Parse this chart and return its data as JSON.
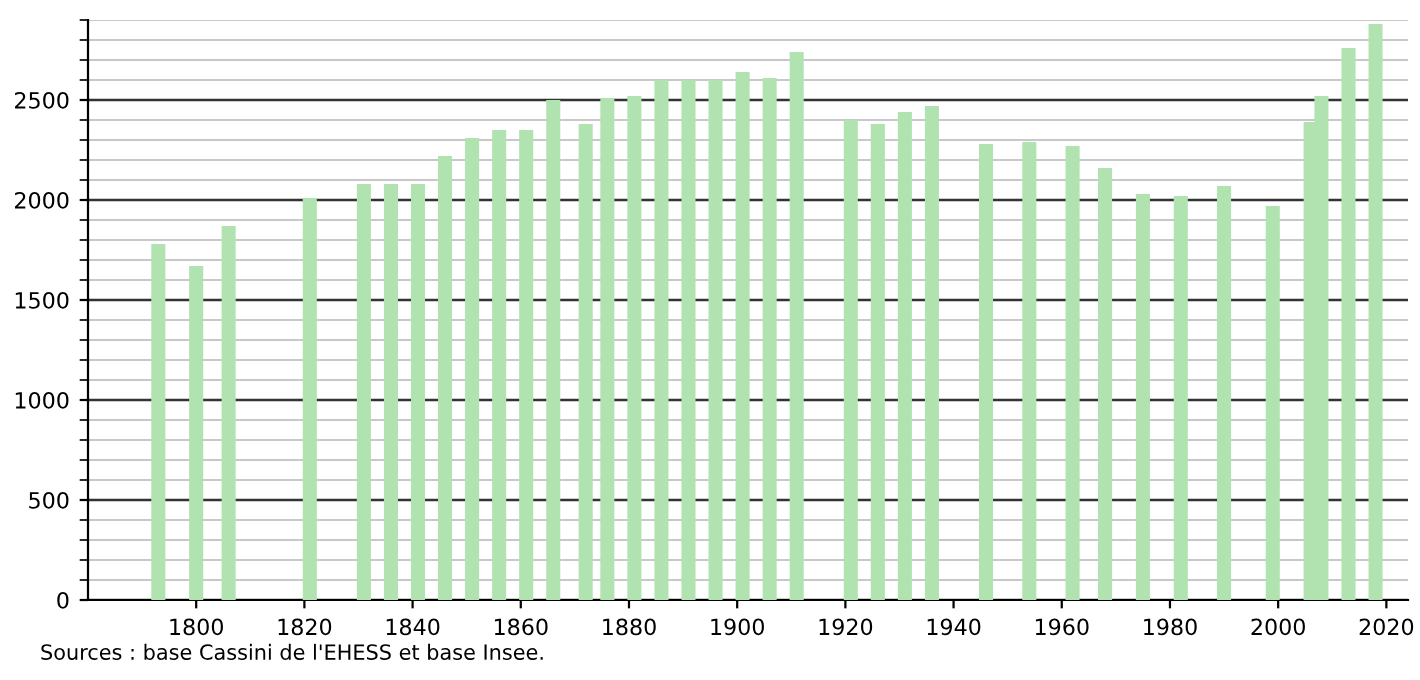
{
  "chart_data": {
    "type": "bar",
    "color": "#b0e3b0",
    "x": [
      1793,
      1800,
      1806,
      1821,
      1831,
      1836,
      1841,
      1846,
      1851,
      1856,
      1861,
      1866,
      1872,
      1876,
      1881,
      1886,
      1891,
      1896,
      1901,
      1906,
      1911,
      1921,
      1926,
      1931,
      1936,
      1946,
      1954,
      1962,
      1968,
      1975,
      1982,
      1990,
      1999,
      2006,
      2008,
      2013,
      2018
    ],
    "values": [
      1780,
      1670,
      1870,
      2010,
      2080,
      2080,
      2080,
      2220,
      2310,
      2350,
      2350,
      2500,
      2380,
      2510,
      2520,
      2600,
      2600,
      2600,
      2640,
      2610,
      2740,
      2400,
      2380,
      2440,
      2470,
      2280,
      2290,
      2270,
      2160,
      2030,
      2020,
      2070,
      1970,
      2390,
      2520,
      2760,
      2880
    ],
    "xlim": [
      1780,
      2024
    ],
    "xticks": [
      1800,
      1820,
      1840,
      1860,
      1880,
      1900,
      1920,
      1940,
      1960,
      1980,
      2000,
      2020
    ],
    "ylim": [
      0,
      2900
    ],
    "yticks": [
      0,
      500,
      1000,
      1500,
      2000,
      2500
    ],
    "grid": "y",
    "annotations": [
      "Sources : base Cassini de l'EHESS et base Insee."
    ]
  }
}
